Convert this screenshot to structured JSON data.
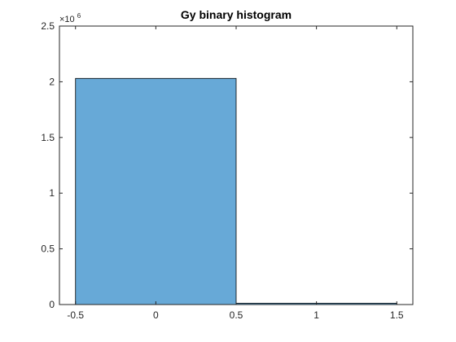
{
  "chart_data": {
    "type": "bar",
    "title": "Gy binary histogram",
    "xlabel": "",
    "ylabel": "",
    "bins": [
      {
        "from": -0.5,
        "to": 0.5,
        "value": 2030000
      },
      {
        "from": 0.5,
        "to": 1.5,
        "value": 12000
      }
    ],
    "xlim": [
      -0.6,
      1.6
    ],
    "ylim": [
      0,
      2500000
    ],
    "x_ticks": [
      {
        "value": -0.5,
        "label": "-0.5"
      },
      {
        "value": 0,
        "label": "0"
      },
      {
        "value": 0.5,
        "label": "0.5"
      },
      {
        "value": 1,
        "label": "1"
      },
      {
        "value": 1.5,
        "label": "1.5"
      }
    ],
    "y_ticks": [
      {
        "value": 0,
        "label": "0"
      },
      {
        "value": 500000,
        "label": "0.5"
      },
      {
        "value": 1000000,
        "label": "1"
      },
      {
        "value": 1500000,
        "label": "1.5"
      },
      {
        "value": 2000000,
        "label": "2"
      },
      {
        "value": 2500000,
        "label": "2.5"
      }
    ],
    "y_exponent_base": "×10",
    "y_exponent_power": "6",
    "grid": false,
    "bar_color": "#67a9d7",
    "edge_color": "#000000",
    "axis_color": "#262626"
  }
}
